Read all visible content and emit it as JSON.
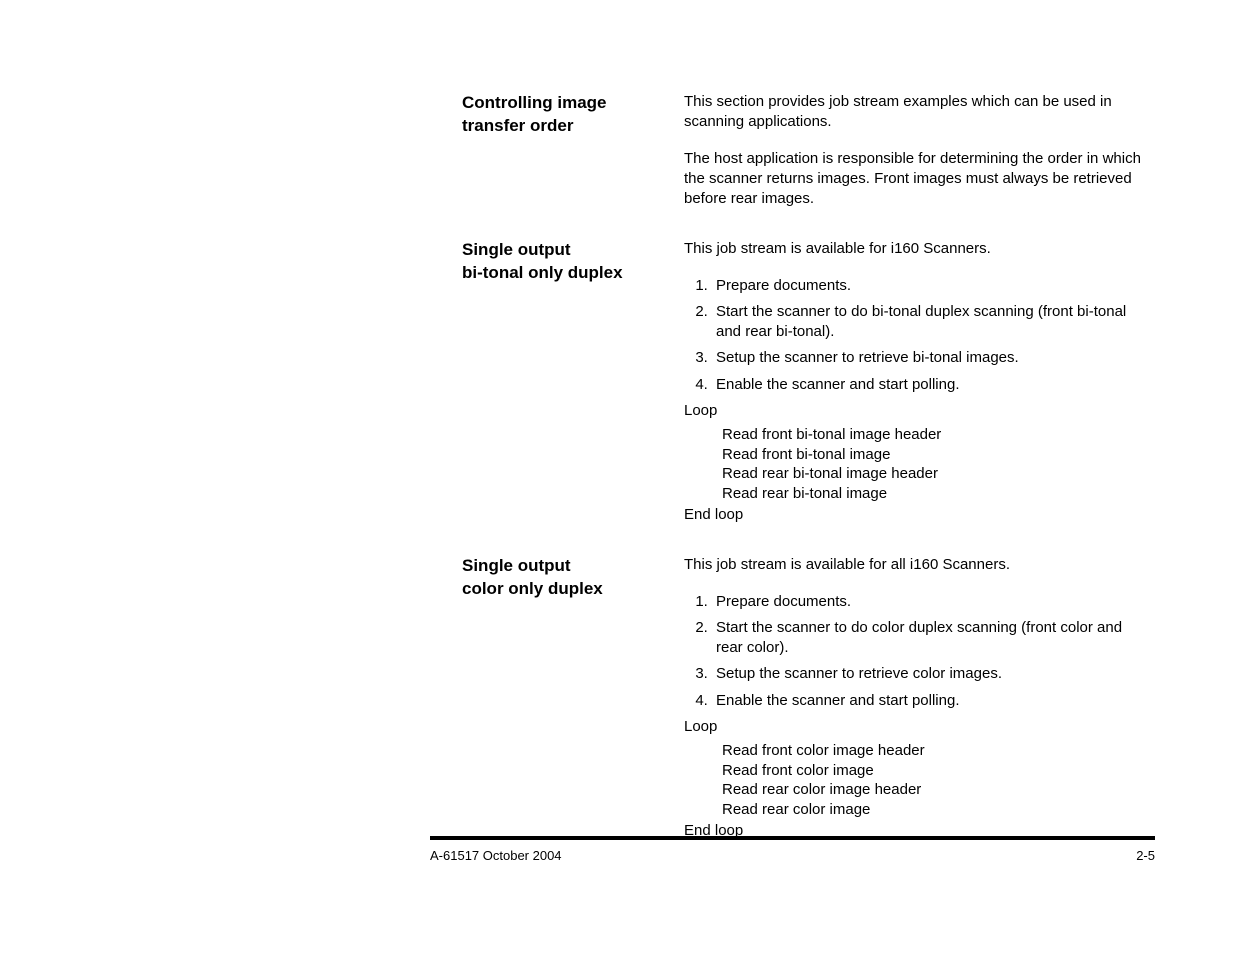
{
  "sections": {
    "controlling": {
      "heading_line1": "Controlling image",
      "heading_line2": "transfer order",
      "intro1": "This section provides job stream examples which can be used in scanning applications.",
      "intro2": "The host application is responsible for determining the order in which the scanner returns images. Front images must always be retrieved before rear images."
    },
    "bitonal": {
      "heading_line1": "Single output",
      "heading_line2": "bi-tonal only duplex",
      "intro": "This job stream is available for i160 Scanners.",
      "steps": [
        "Prepare documents.",
        "Start the scanner to do bi-tonal duplex scanning (front bi-tonal and rear bi-tonal).",
        "Setup the scanner to retrieve bi-tonal images.",
        "Enable the scanner and start polling."
      ],
      "loop_start": "Loop",
      "loop_lines": [
        "Read front bi-tonal image header",
        "Read front bi-tonal image",
        "Read rear bi-tonal image header",
        "Read rear bi-tonal image"
      ],
      "loop_end": "End loop"
    },
    "color": {
      "heading_line1": "Single output",
      "heading_line2": "color only duplex",
      "intro": "This job stream is available for all i160 Scanners.",
      "steps": [
        "Prepare documents.",
        "Start the scanner to do color duplex scanning (front color and rear color).",
        "Setup the scanner to retrieve color images.",
        "Enable the scanner and start polling."
      ],
      "loop_start": "Loop",
      "loop_lines": [
        "Read front color image header",
        "Read front color image",
        "Read rear color image header",
        "Read rear color image"
      ],
      "loop_end": "End loop"
    }
  },
  "footer": {
    "left": "A-61517  October 2004",
    "right": "2-5"
  }
}
